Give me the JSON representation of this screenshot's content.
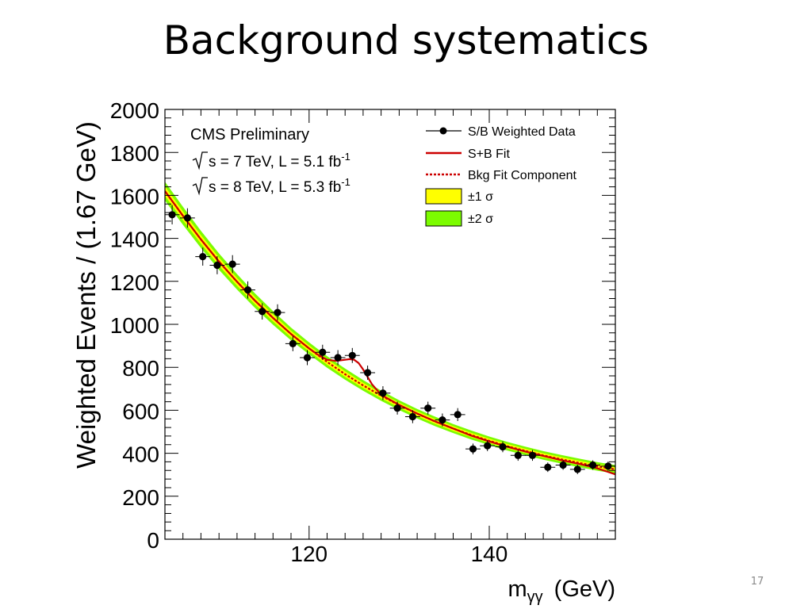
{
  "slide": {
    "title": "Background systematics",
    "page_number": "17"
  },
  "chart_data": {
    "type": "scatter",
    "x_range": [
      104,
      154
    ],
    "y_range": [
      0,
      2000
    ],
    "xlabel_main": "m",
    "xlabel_sub": "γγ",
    "xlabel_unit": "(GeV)",
    "ylabel": "Weighted Events / (1.67 GeV)",
    "x_tick_labels": [
      120,
      140
    ],
    "y_tick_labels": [
      0,
      200,
      400,
      600,
      800,
      1000,
      1200,
      1400,
      1600,
      1800,
      2000
    ],
    "y_major_step": 200,
    "y_minor_step": 40,
    "x_major_step": 20,
    "x_minor_step": 2,
    "grid": false,
    "legend_position": "top-right",
    "annotations": {
      "experiment": "CMS Preliminary",
      "line1": {
        "text": "s = 7 TeV, L = 5.1 fb",
        "exp": "-1"
      },
      "line2": {
        "text": "s = 8 TeV, L = 5.3 fb",
        "exp": "-1"
      }
    },
    "legend": [
      {
        "label": "S/B Weighted Data",
        "kind": "marker",
        "color": "#000000"
      },
      {
        "label": "S+B Fit",
        "kind": "line",
        "color": "#cc0000"
      },
      {
        "label": "Bkg Fit Component",
        "kind": "dashed",
        "color": "#cc0000"
      },
      {
        "label": "±1 σ",
        "kind": "box",
        "color": "#ffff00"
      },
      {
        "label": "±2 σ",
        "kind": "box",
        "color": "#7cfc00"
      }
    ],
    "colors": {
      "data": "#000000",
      "fit": "#cc0000",
      "band1": "#ffff00",
      "band2": "#7cfc00"
    },
    "data_points": [
      {
        "x": 104.8,
        "y": 1510,
        "err": 45
      },
      {
        "x": 106.5,
        "y": 1495,
        "err": 45
      },
      {
        "x": 108.2,
        "y": 1315,
        "err": 42
      },
      {
        "x": 109.8,
        "y": 1275,
        "err": 42
      },
      {
        "x": 111.5,
        "y": 1280,
        "err": 42
      },
      {
        "x": 113.2,
        "y": 1160,
        "err": 40
      },
      {
        "x": 114.8,
        "y": 1060,
        "err": 38
      },
      {
        "x": 116.5,
        "y": 1055,
        "err": 38
      },
      {
        "x": 118.2,
        "y": 910,
        "err": 35
      },
      {
        "x": 119.8,
        "y": 845,
        "err": 35
      },
      {
        "x": 121.5,
        "y": 870,
        "err": 35
      },
      {
        "x": 123.2,
        "y": 845,
        "err": 35
      },
      {
        "x": 124.8,
        "y": 855,
        "err": 35
      },
      {
        "x": 126.5,
        "y": 775,
        "err": 33
      },
      {
        "x": 128.2,
        "y": 680,
        "err": 32
      },
      {
        "x": 129.8,
        "y": 610,
        "err": 30
      },
      {
        "x": 131.5,
        "y": 570,
        "err": 30
      },
      {
        "x": 133.2,
        "y": 610,
        "err": 30
      },
      {
        "x": 134.8,
        "y": 555,
        "err": 30
      },
      {
        "x": 136.5,
        "y": 580,
        "err": 30
      },
      {
        "x": 138.2,
        "y": 420,
        "err": 25
      },
      {
        "x": 139.8,
        "y": 435,
        "err": 25
      },
      {
        "x": 141.5,
        "y": 430,
        "err": 25
      },
      {
        "x": 143.2,
        "y": 390,
        "err": 25
      },
      {
        "x": 144.8,
        "y": 390,
        "err": 25
      },
      {
        "x": 146.5,
        "y": 335,
        "err": 22
      },
      {
        "x": 148.2,
        "y": 345,
        "err": 22
      },
      {
        "x": 149.8,
        "y": 325,
        "err": 22
      },
      {
        "x": 151.5,
        "y": 345,
        "err": 22
      },
      {
        "x": 153.2,
        "y": 340,
        "err": 22
      }
    ],
    "x_bin_half_width": 0.83,
    "background_fit": {
      "x": [
        104,
        106,
        108,
        110,
        112,
        114,
        116,
        118,
        120,
        122,
        124,
        126,
        128,
        130,
        132,
        134,
        136,
        138,
        140,
        142,
        144,
        146,
        148,
        150,
        152,
        154
      ],
      "y": [
        1620,
        1505,
        1395,
        1292,
        1198,
        1110,
        1030,
        955,
        888,
        825,
        768,
        716,
        668,
        624,
        584,
        548,
        515,
        485,
        458,
        433,
        411,
        390,
        372,
        355,
        339,
        325
      ]
    },
    "signal_plus_background_fit": {
      "x": [
        104,
        106,
        108,
        110,
        112,
        114,
        116,
        118,
        120,
        121,
        122,
        123,
        124,
        124.5,
        125,
        125.5,
        126,
        127,
        128,
        130,
        132,
        134,
        136,
        138,
        140,
        142,
        144,
        146,
        148,
        150,
        152,
        154
      ],
      "y": [
        1620,
        1505,
        1395,
        1292,
        1198,
        1110,
        1030,
        955,
        888,
        858,
        835,
        830,
        835,
        838,
        835,
        820,
        790,
        720,
        672,
        625,
        585,
        548,
        515,
        482,
        455,
        430,
        408,
        388,
        368,
        350,
        330,
        302
      ]
    },
    "band1_half_width": [
      22,
      21,
      20,
      19,
      18,
      17,
      16,
      15,
      14,
      13,
      13,
      12,
      12,
      11,
      11,
      11,
      11,
      10,
      10,
      10,
      10,
      10,
      10,
      10,
      10,
      10
    ],
    "band2_half_width": [
      44,
      42,
      40,
      38,
      36,
      34,
      32,
      30,
      28,
      27,
      26,
      25,
      24,
      23,
      22,
      22,
      21,
      21,
      20,
      20,
      20,
      20,
      20,
      20,
      20,
      20
    ]
  }
}
